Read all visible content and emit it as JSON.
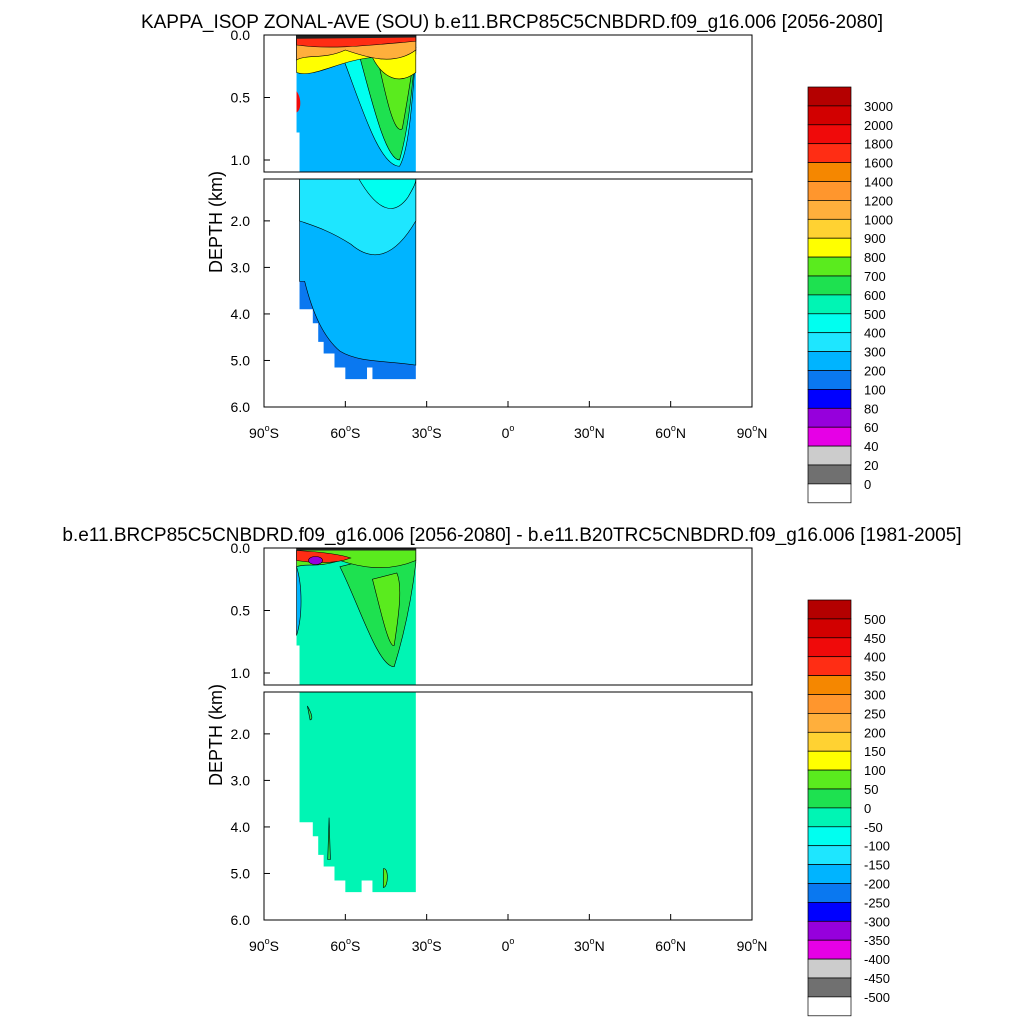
{
  "panels": [
    {
      "title": "KAPPA_ISOP ZONAL-AVE (SOU) b.e11.BRCP85C5CNBDRD.f09_g16.006 [2056-2080]",
      "ylabel": "DEPTH (km)",
      "upper_ticks": [
        "0.0",
        "0.5",
        "1.0"
      ],
      "lower_ticks": [
        "2.0",
        "3.0",
        "4.0",
        "5.0",
        "6.0"
      ],
      "xticks": [
        {
          "deg": "90",
          "hemi": "S"
        },
        {
          "deg": "60",
          "hemi": "S"
        },
        {
          "deg": "30",
          "hemi": "S"
        },
        {
          "deg": "0",
          "hemi": ""
        },
        {
          "deg": "30",
          "hemi": "N"
        },
        {
          "deg": "60",
          "hemi": "N"
        },
        {
          "deg": "90",
          "hemi": "N"
        }
      ],
      "colorbar": {
        "labels": [
          "3000",
          "2000",
          "1800",
          "1600",
          "1400",
          "1200",
          "1000",
          "900",
          "800",
          "700",
          "600",
          "500",
          "400",
          "300",
          "200",
          "100",
          "80",
          "60",
          "40",
          "20",
          "0"
        ],
        "colors": [
          "#b40000",
          "#d20000",
          "#f00a0a",
          "#ff2d14",
          "#f58700",
          "#ff962d",
          "#ffaf3c",
          "#ffd232",
          "#ffff00",
          "#5aeb1e",
          "#1ee150",
          "#00f5b4",
          "#00fff0",
          "#1ee6ff",
          "#00b4ff",
          "#0a78f0",
          "#0000ff",
          "#9600dc",
          "#e600e6",
          "#cccccc",
          "#707070",
          "#ffffff"
        ]
      }
    },
    {
      "title": "b.e11.BRCP85C5CNBDRD.f09_g16.006 [2056-2080] - b.e11.B20TRC5CNBDRD.f09_g16.006 [1981-2005]",
      "ylabel": "DEPTH (km)",
      "upper_ticks": [
        "0.0",
        "0.5",
        "1.0"
      ],
      "lower_ticks": [
        "2.0",
        "3.0",
        "4.0",
        "5.0",
        "6.0"
      ],
      "xticks": [
        {
          "deg": "90",
          "hemi": "S"
        },
        {
          "deg": "60",
          "hemi": "S"
        },
        {
          "deg": "30",
          "hemi": "S"
        },
        {
          "deg": "0",
          "hemi": ""
        },
        {
          "deg": "30",
          "hemi": "N"
        },
        {
          "deg": "60",
          "hemi": "N"
        },
        {
          "deg": "90",
          "hemi": "N"
        }
      ],
      "colorbar": {
        "labels": [
          "500",
          "450",
          "400",
          "350",
          "300",
          "250",
          "200",
          "150",
          "100",
          "50",
          "0",
          "-50",
          "-100",
          "-150",
          "-200",
          "-250",
          "-300",
          "-350",
          "-400",
          "-450",
          "-500"
        ],
        "colors": [
          "#b40000",
          "#d20000",
          "#f00a0a",
          "#ff2d14",
          "#f58700",
          "#ff962d",
          "#ffaf3c",
          "#ffd232",
          "#ffff00",
          "#5aeb1e",
          "#1ee150",
          "#00f5b4",
          "#00fff0",
          "#1ee6ff",
          "#00b4ff",
          "#0a78f0",
          "#0000ff",
          "#9600dc",
          "#e600e6",
          "#cccccc",
          "#707070",
          "#ffffff"
        ]
      }
    }
  ],
  "chart_data": [
    {
      "type": "heatmap",
      "title": "KAPPA_ISOP ZONAL-AVE (SOU) b.e11.BRCP85C5CNBDRD.f09_g16.006 [2056-2080]",
      "xlabel": "",
      "ylabel": "DEPTH (km)",
      "x_range": [
        "90S",
        "90N"
      ],
      "y_range_km": [
        0.0,
        6.0
      ],
      "levels": [
        0,
        20,
        40,
        60,
        80,
        100,
        200,
        300,
        400,
        500,
        600,
        700,
        800,
        900,
        1000,
        1200,
        1400,
        1600,
        1800,
        2000,
        3000
      ],
      "data_extent": {
        "lat_min": -78,
        "lat_max": -34,
        "max_depth_km": 5.4
      },
      "regions": [
        {
          "depth_km": [
            0.0,
            0.3
          ],
          "lat": [
            -78,
            -34
          ],
          "value_range": [
            800,
            3000
          ]
        },
        {
          "depth_km": [
            0.3,
            1.0
          ],
          "lat": [
            -60,
            -36
          ],
          "value_range": [
            500,
            800
          ]
        },
        {
          "depth_km": [
            0.3,
            1.5
          ],
          "lat": [
            -78,
            -60
          ],
          "value_range": [
            300,
            500
          ]
        },
        {
          "depth_km": [
            1.5,
            3.5
          ],
          "lat": [
            -78,
            -34
          ],
          "value_range": [
            300,
            400
          ]
        },
        {
          "depth_km": [
            3.5,
            5.4
          ],
          "lat": [
            -78,
            -34
          ],
          "value_range": [
            200,
            300
          ]
        }
      ]
    },
    {
      "type": "heatmap",
      "title": "b.e11.BRCP85C5CNBDRD.f09_g16.006 [2056-2080] - b.e11.B20TRC5CNBDRD.f09_g16.006 [1981-2005]",
      "xlabel": "",
      "ylabel": "DEPTH (km)",
      "x_range": [
        "90S",
        "90N"
      ],
      "y_range_km": [
        0.0,
        6.0
      ],
      "levels": [
        -500,
        -450,
        -400,
        -350,
        -300,
        -250,
        -200,
        -150,
        -100,
        -50,
        0,
        50,
        100,
        150,
        200,
        250,
        300,
        350,
        400,
        450,
        500
      ],
      "data_extent": {
        "lat_min": -78,
        "lat_max": -34,
        "max_depth_km": 5.4
      },
      "regions": [
        {
          "depth_km": [
            0.0,
            0.2
          ],
          "lat": [
            -78,
            -34
          ],
          "value_range": [
            -350,
            500
          ]
        },
        {
          "depth_km": [
            0.2,
            0.9
          ],
          "lat": [
            -60,
            -36
          ],
          "value_range": [
            0,
            100
          ]
        },
        {
          "depth_km": [
            0.2,
            5.4
          ],
          "lat": [
            -78,
            -34
          ],
          "value_range": [
            -50,
            0
          ]
        }
      ]
    }
  ]
}
